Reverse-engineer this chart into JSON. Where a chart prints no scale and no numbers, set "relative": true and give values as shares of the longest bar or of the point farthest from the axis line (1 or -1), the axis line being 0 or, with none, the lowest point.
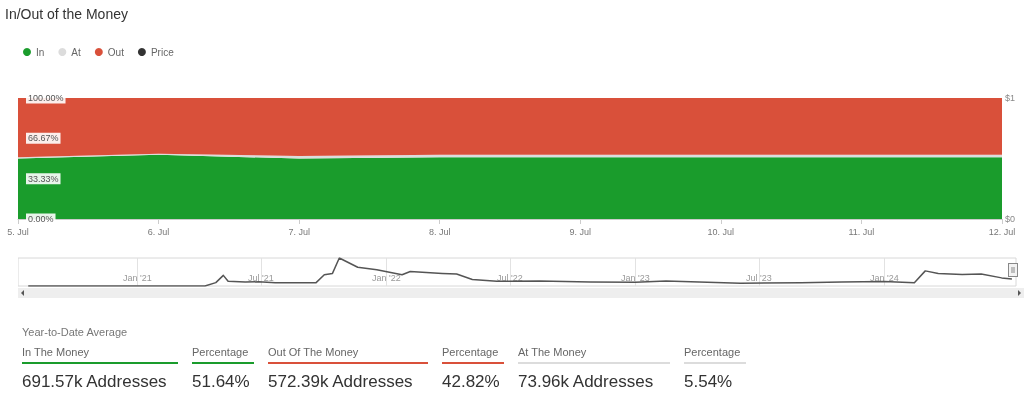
{
  "chart_data": [
    {
      "type": "area",
      "title": "In/Out of the Money",
      "stacked": true,
      "legend": "top left",
      "categories": [
        "5. Jul",
        "6. Jul",
        "7. Jul",
        "8. Jul",
        "9. Jul",
        "10. Jul",
        "11. Jul",
        "12. Jul"
      ],
      "series": [
        {
          "name": "In",
          "color": "#1a9c2c",
          "values": [
            50,
            53,
            50,
            51,
            51,
            51,
            51,
            51
          ]
        },
        {
          "name": "At",
          "color": "#dcdcdc",
          "values": [
            1,
            1,
            2,
            2,
            2,
            2,
            2,
            2
          ]
        },
        {
          "name": "Out",
          "color": "#d9503a",
          "values": [
            49,
            46,
            48,
            47,
            47,
            47,
            47,
            47
          ]
        },
        {
          "name": "Price",
          "color": "#333333",
          "type": "line",
          "axis": "y2",
          "values": [
            null,
            null,
            null,
            null,
            null,
            null,
            null,
            null
          ]
        }
      ],
      "ylim": [
        0,
        100
      ],
      "yticks": [
        {
          "value": 0,
          "label": "0.00%"
        },
        {
          "value": 33.33,
          "label": "33.33%"
        },
        {
          "value": 66.67,
          "label": "66.67%"
        },
        {
          "value": 100,
          "label": "100.00%"
        }
      ],
      "y2lim": [
        0,
        1
      ],
      "y2ticks": [
        {
          "value": 0,
          "label": "$0"
        },
        {
          "value": 1,
          "label": "$1"
        }
      ],
      "grid": false
    },
    {
      "type": "line",
      "relative": true,
      "color": "#555555",
      "grid": "x",
      "x": [
        "2020-07-25",
        "2021-04-10",
        "2021-04-26",
        "2021-05-07",
        "2021-05-14",
        "2021-06-08",
        "2021-06-28",
        "2021-07-22",
        "2021-09-20",
        "2021-10-02",
        "2021-10-14",
        "2021-10-24",
        "2021-11-20",
        "2021-12-18",
        "2022-01-24",
        "2022-02-05",
        "2022-03-24",
        "2022-04-14",
        "2022-05-07",
        "2022-06-12",
        "2022-08-14",
        "2022-10-27",
        "2023-01-01",
        "2023-02-15",
        "2023-06-04",
        "2023-09-01",
        "2023-10-30",
        "2024-01-01",
        "2024-02-14",
        "2024-03-01",
        "2024-03-20",
        "2024-04-24",
        "2024-05-22",
        "2024-06-21",
        "2024-07-06"
      ],
      "values": [
        0,
        0,
        0.12,
        0.38,
        0.17,
        0.14,
        0.15,
        0.12,
        0.12,
        0.4,
        0.45,
        1,
        0.67,
        0.58,
        0.4,
        0.52,
        0.45,
        0.43,
        0.23,
        0.17,
        0.18,
        0.14,
        0.13,
        0.18,
        0.1,
        0.12,
        0.14,
        0.16,
        0.12,
        0.54,
        0.45,
        0.41,
        0.43,
        0.29,
        0.25
      ],
      "xlim": [
        "2020-07-10",
        "2024-07-12"
      ],
      "xticks": [
        {
          "value": "2021-01-01",
          "label": "Jan '21"
        },
        {
          "value": "2021-07-01",
          "label": "Jul '21"
        },
        {
          "value": "2022-01-01",
          "label": "Jan '22"
        },
        {
          "value": "2022-07-01",
          "label": "Jul '22"
        },
        {
          "value": "2023-01-01",
          "label": "Jan '23"
        },
        {
          "value": "2023-07-01",
          "label": "Jul '23"
        },
        {
          "value": "2024-01-01",
          "label": "Jan '24"
        }
      ]
    },
    {
      "type": "other",
      "title": "Year-to-Date Average",
      "annotations": [
        "In The Money",
        "Percentage",
        "Out Of The Money",
        "Percentage",
        "At The Money",
        "Percentage",
        "691.57k Addresses",
        "51.64%",
        "572.39k Addresses",
        "42.82%",
        "73.96k Addresses",
        "5.54%"
      ]
    }
  ]
}
